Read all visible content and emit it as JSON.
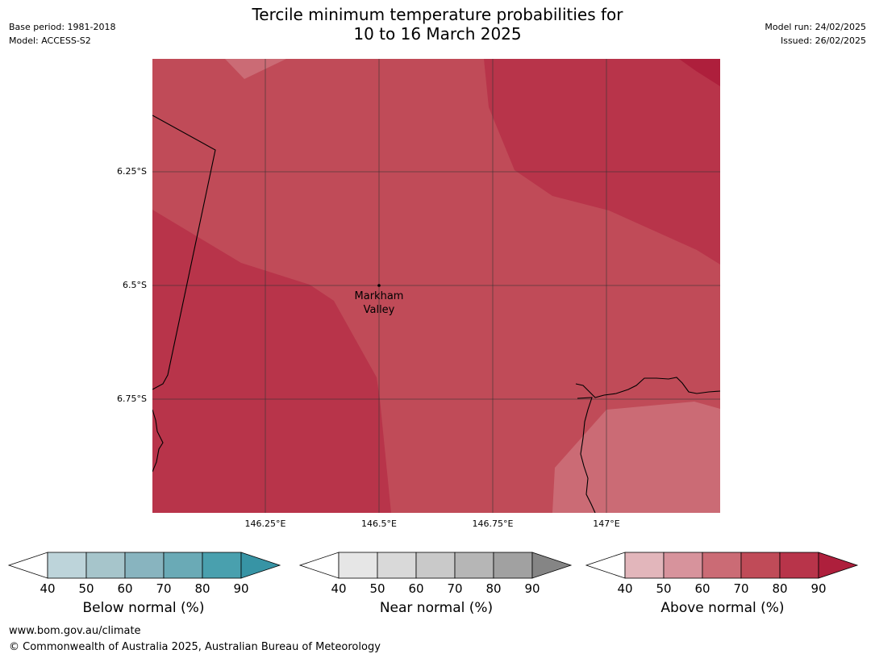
{
  "header": {
    "title_line1": "Tercile minimum temperature probabilities for",
    "title_line2": "10 to 16 March 2025",
    "base_period": "Base period: 1981-2018",
    "model": "Model: ACCESS-S2",
    "model_run": "Model run: 24/02/2025",
    "issued": "Issued: 26/02/2025"
  },
  "map": {
    "latitude_labels": [
      "6.25°S",
      "6.5°S",
      "6.75°S"
    ],
    "longitude_labels": [
      "146.25°E",
      "146.5°E",
      "146.75°E",
      "147°E"
    ],
    "place": {
      "name_line1": "Markham",
      "name_line2": "Valley"
    },
    "fill_colors": {
      "above_50_60": "#d7939c",
      "above_60_70": "#cb6b75",
      "above_70_80": "#c04b58",
      "above_80_90": "#b8344a",
      "above_90_plus": "#ae1f3c"
    }
  },
  "legends": [
    {
      "caption": "Below normal (%)",
      "ticks": [
        "40",
        "50",
        "60",
        "70",
        "80",
        "90"
      ],
      "colors": [
        "#bdd4da",
        "#a6c5cb",
        "#88b4bf",
        "#6aaab6",
        "#49a0ae",
        "#3794a5"
      ]
    },
    {
      "caption": "Near normal (%)",
      "ticks": [
        "40",
        "50",
        "60",
        "70",
        "80",
        "90"
      ],
      "colors": [
        "#e6e6e6",
        "#d9d9d9",
        "#c9c9c9",
        "#b6b6b6",
        "#a1a1a1",
        "#858585"
      ]
    },
    {
      "caption": "Above normal (%)",
      "ticks": [
        "40",
        "50",
        "60",
        "70",
        "80",
        "90"
      ],
      "colors": [
        "#e2b6bb",
        "#d7939c",
        "#cb6b75",
        "#c04b58",
        "#b8344a",
        "#ae1f3c"
      ]
    }
  ],
  "footer": {
    "url": "www.bom.gov.au/climate",
    "copyright": "© Commonwealth of Australia 2025, Australian Bureau of Meteorology"
  }
}
